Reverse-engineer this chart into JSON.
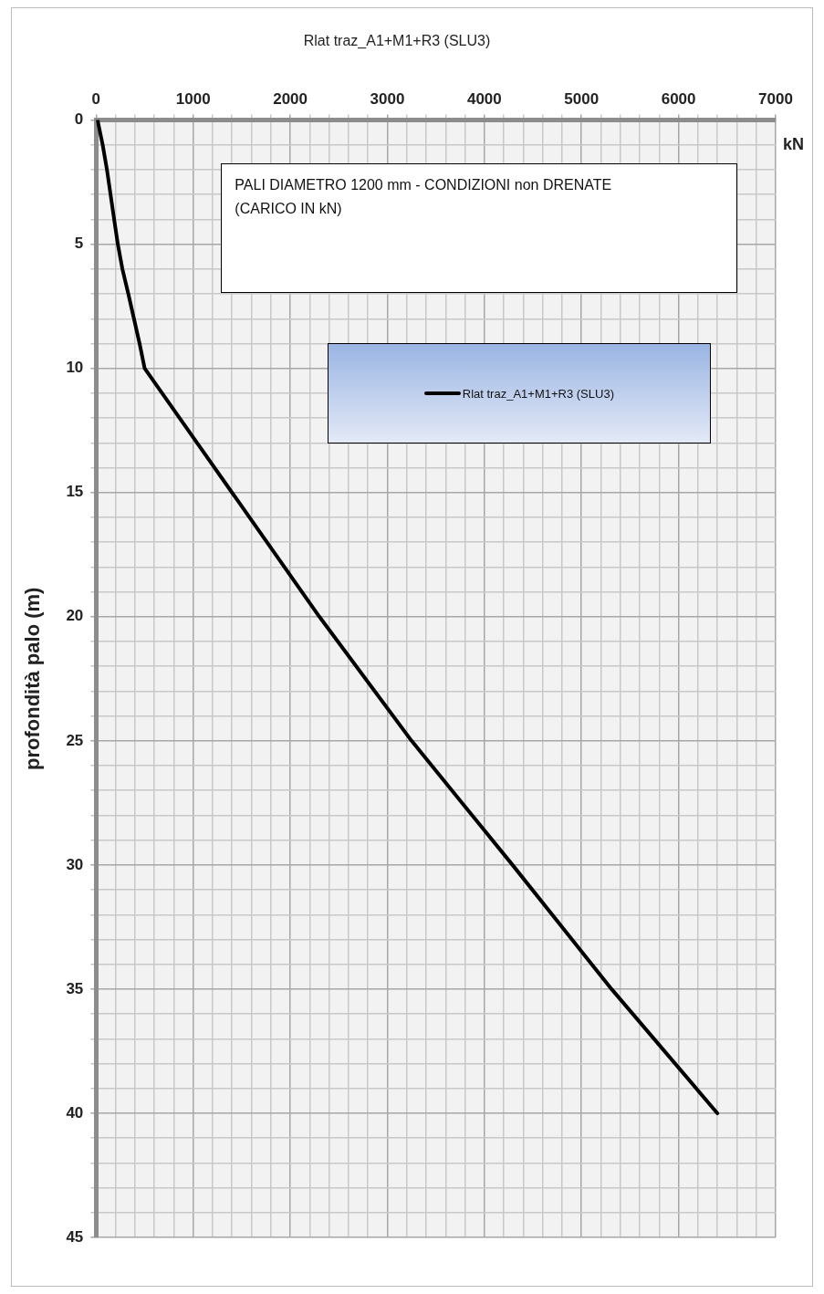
{
  "chart_data": {
    "type": "line",
    "title": "Rlat traz_A1+M1+R3 (SLU3)",
    "xlabel": "kN",
    "ylabel": "profondità palo (m)",
    "annotations": [
      "PALI  DIAMETRO 1200 mm - CONDIZIONI non DRENATE (CARICO IN kN)"
    ],
    "x": [
      15,
      68,
      112,
      149,
      186,
      224,
      271,
      332,
      390,
      448,
      500,
      1400,
      2300,
      3250,
      4290,
      5310,
      6400
    ],
    "series": [
      {
        "name": "Rlat traz_A1+M1+R3 (SLU3)",
        "color": "#000000",
        "values": [
          0,
          1,
          2,
          3,
          4,
          5,
          6,
          7,
          8,
          9,
          10,
          15,
          20,
          25,
          30,
          35,
          40
        ]
      }
    ],
    "xlim": [
      0,
      7000
    ],
    "ylim": [
      45,
      0
    ],
    "xticks": [
      0,
      {
        "value": 200,
        "label": null
      },
      {
        "value": 400,
        "label": null
      },
      {
        "value": 600,
        "label": null
      },
      {
        "value": 800,
        "label": null
      },
      1000,
      {
        "value": 1200,
        "label": null
      },
      {
        "value": 1400,
        "label": null
      },
      {
        "value": 1600,
        "label": null
      },
      {
        "value": 1800,
        "label": null
      },
      2000,
      {
        "value": 2200,
        "label": null
      },
      {
        "value": 2400,
        "label": null
      },
      {
        "value": 2600,
        "label": null
      },
      {
        "value": 2800,
        "label": null
      },
      3000,
      {
        "value": 3200,
        "label": null
      },
      {
        "value": 3400,
        "label": null
      },
      {
        "value": 3600,
        "label": null
      },
      {
        "value": 3800,
        "label": null
      },
      4000,
      {
        "value": 4200,
        "label": null
      },
      {
        "value": 4400,
        "label": null
      },
      {
        "value": 4600,
        "label": null
      },
      {
        "value": 4800,
        "label": null
      },
      5000,
      {
        "value": 5200,
        "label": null
      },
      {
        "value": 5400,
        "label": null
      },
      {
        "value": 5600,
        "label": null
      },
      {
        "value": 5800,
        "label": null
      },
      6000,
      {
        "value": 6200,
        "label": null
      },
      {
        "value": 6400,
        "label": null
      },
      {
        "value": 6600,
        "label": null
      },
      {
        "value": 6800,
        "label": null
      },
      7000
    ],
    "yticks": [
      0,
      {
        "value": 1,
        "label": null
      },
      {
        "value": 2,
        "label": null
      },
      {
        "value": 3,
        "label": null
      },
      {
        "value": 4,
        "label": null
      },
      5,
      {
        "value": 6,
        "label": null
      },
      {
        "value": 7,
        "label": null
      },
      {
        "value": 8,
        "label": null
      },
      {
        "value": 9,
        "label": null
      },
      10,
      {
        "value": 11,
        "label": null
      },
      {
        "value": 12,
        "label": null
      },
      {
        "value": 13,
        "label": null
      },
      {
        "value": 14,
        "label": null
      },
      15,
      {
        "value": 16,
        "label": null
      },
      {
        "value": 17,
        "label": null
      },
      {
        "value": 18,
        "label": null
      },
      {
        "value": 19,
        "label": null
      },
      20,
      {
        "value": 21,
        "label": null
      },
      {
        "value": 22,
        "label": null
      },
      {
        "value": 23,
        "label": null
      },
      {
        "value": 24,
        "label": null
      },
      25,
      {
        "value": 26,
        "label": null
      },
      {
        "value": 27,
        "label": null
      },
      {
        "value": 28,
        "label": null
      },
      {
        "value": 29,
        "label": null
      },
      30,
      {
        "value": 31,
        "label": null
      },
      {
        "value": 32,
        "label": null
      },
      {
        "value": 33,
        "label": null
      },
      {
        "value": 34,
        "label": null
      },
      35,
      {
        "value": 36,
        "label": null
      },
      {
        "value": 37,
        "label": null
      },
      {
        "value": 38,
        "label": null
      },
      {
        "value": 39,
        "label": null
      },
      40,
      {
        "value": 41,
        "label": null
      },
      {
        "value": 42,
        "label": null
      },
      {
        "value": 43,
        "label": null
      },
      {
        "value": 44,
        "label": null
      },
      45
    ],
    "grid": true,
    "legend": "top right",
    "marker": "none",
    "line_style": "solid"
  }
}
